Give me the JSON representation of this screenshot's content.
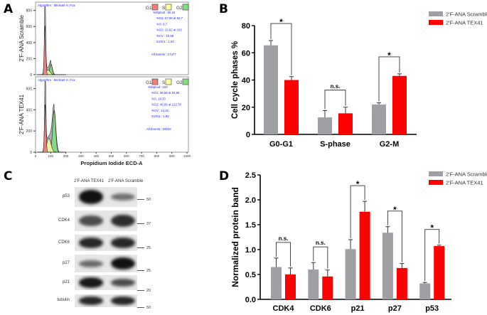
{
  "panels": {
    "a": "A",
    "b": "B",
    "c": "C",
    "d": "D"
  },
  "flow": {
    "xlabel": "Propidium Iodide ECD-A",
    "xticks": [
      0,
      100,
      200,
      300,
      400,
      500,
      600,
      700,
      800,
      900,
      1000
    ],
    "legend": [
      "G1",
      "S",
      "G2"
    ],
    "colors": {
      "G1": "#f08080",
      "S": "#ffffa0",
      "G2": "#80e080",
      "raw": "#b0b0b0",
      "text": "#2020ff"
    },
    "plots": [
      {
        "ylabel": "2'F-ANA Scramble",
        "algorithm": "Algorithm : Michael H. Fox",
        "yticks": [
          0,
          200,
          400,
          600,
          800
        ],
        "ymax": 850,
        "stats": [
          "%Diploid : 90,34",
          "%G1: 67,68 at 62,7",
          "%S: 9,7",
          "%G2: 22,62 at 102",
          "%CV : 10,58",
          "G2/G1 : 1,63"
        ],
        "events": "All Events : 17477",
        "g1": {
          "mean": 62.7,
          "peak": 610
        },
        "s": {
          "mean": 82,
          "peak": 60
        },
        "g2": {
          "mean": 102,
          "peak": 130
        },
        "raw_peak": 860
      },
      {
        "ylabel": "2'F-ANA TEX41",
        "algorithm": "Algorithm : Michael H. Fox",
        "yticks": [
          0,
          200,
          400,
          600
        ],
        "ymax": 670,
        "stats": [
          "%Diploid : 100",
          "%G1: 36,58 at 63,85",
          "%S: 18,33",
          "%G2: 45,09 at 122,78",
          "%CV : 14,21",
          "G2/G1 : 1,92"
        ],
        "events": "All Events : 29043",
        "g1": {
          "mean": 63.85,
          "peak": 450
        },
        "s": {
          "mean": 88,
          "peak": 130
        },
        "g2": {
          "mean": 122.78,
          "peak": 390
        },
        "raw_peak": 660
      }
    ]
  },
  "blot": {
    "lanes": [
      "2'F-ANA TEX41",
      "2'F-ANA Scramble"
    ],
    "rows": [
      {
        "label": "p53",
        "mw": "50",
        "intensity": [
          1.0,
          0.35
        ]
      },
      {
        "label": "CDK4",
        "mw": "37",
        "intensity": [
          0.6,
          0.8
        ]
      },
      {
        "label": "CDK6",
        "mw": "25",
        "intensity": [
          0.85,
          0.85
        ]
      },
      {
        "label": "p27",
        "mw": "25",
        "intensity": [
          0.4,
          1.0
        ]
      },
      {
        "label": "p21",
        "mw": "20",
        "intensity": [
          0.95,
          0.6
        ]
      },
      {
        "label": "tubulin",
        "mw": "50",
        "intensity": [
          0.85,
          0.85
        ]
      }
    ]
  },
  "chart_data": [
    {
      "type": "bar",
      "panel": "B",
      "ylabel": "Cell cycle phases  %",
      "ylim": [
        0,
        80
      ],
      "yticks": [
        0,
        20,
        40,
        60,
        80
      ],
      "categories": [
        "G0-G1",
        "S-phase",
        "G2-M"
      ],
      "series": [
        {
          "name": "2'F-ANA Scramble",
          "color": "#a0a0a4",
          "values": [
            65.5,
            12.5,
            22
          ],
          "errors": [
            3.5,
            5,
            1.2
          ]
        },
        {
          "name": "2'F-ANA TEX41",
          "color": "#ff0000",
          "values": [
            40,
            15.5,
            43
          ],
          "errors": [
            2.5,
            4.5,
            1.5
          ]
        }
      ],
      "annotations": [
        "*",
        "n.s.",
        "*"
      ]
    },
    {
      "type": "bar",
      "panel": "D",
      "ylabel": "Normalized protein band",
      "ylim": [
        0,
        2.5
      ],
      "yticks": [
        "0.0",
        "0.5",
        "1.0",
        "1.5",
        "2.0",
        "2.5"
      ],
      "categories": [
        "CDK4",
        "CDK6",
        "p21",
        "p27",
        "p53"
      ],
      "series": [
        {
          "name": "2'F-ANA Scramble",
          "color": "#a0a0a4",
          "values": [
            0.65,
            0.6,
            1.01,
            1.34,
            0.32
          ],
          "errors": [
            0.18,
            0.14,
            0.19,
            0.12,
            0.02
          ]
        },
        {
          "name": "2'F-ANA TEX41",
          "color": "#ff0000",
          "values": [
            0.5,
            0.46,
            1.76,
            0.63,
            1.07
          ],
          "errors": [
            0.13,
            0.13,
            0.21,
            0.09,
            0.02
          ]
        }
      ],
      "annotations": [
        "n.s.",
        "n.s.",
        "*",
        "*",
        "*"
      ]
    }
  ]
}
